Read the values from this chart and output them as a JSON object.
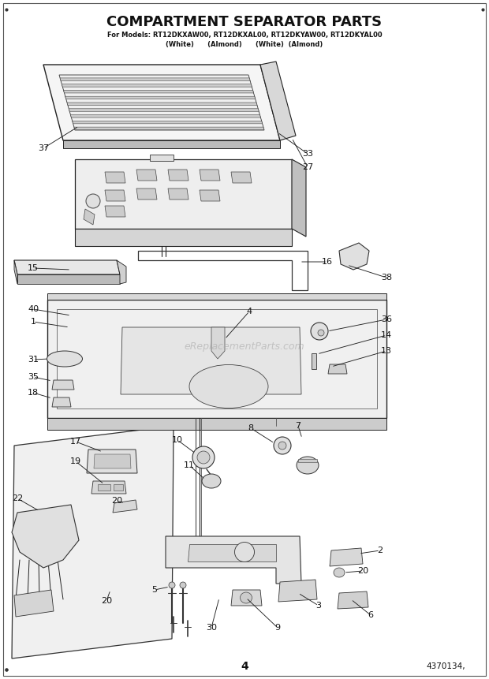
{
  "title": "COMPARTMENT SEPARATOR PARTS",
  "subtitle_line1": "For Models: RT12DKXAW00, RT12DKXAL00, RT12DKYAW00, RT12DKYAL00",
  "subtitle_line2": "(White)      (Almond)      (White)  (Almond)",
  "page_number": "4",
  "doc_number": "4370134,",
  "watermark": "eReplacementParts.com",
  "background_color": "#ffffff"
}
